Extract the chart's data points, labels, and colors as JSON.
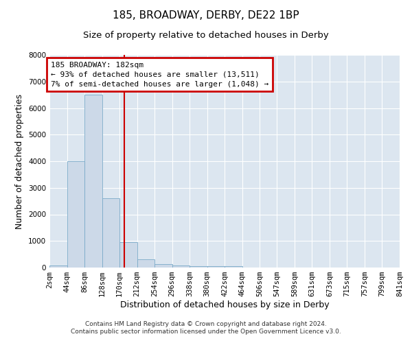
{
  "title": "185, BROADWAY, DERBY, DE22 1BP",
  "subtitle": "Size of property relative to detached houses in Derby",
  "xlabel": "Distribution of detached houses by size in Derby",
  "ylabel": "Number of detached properties",
  "footer_line1": "Contains HM Land Registry data © Crown copyright and database right 2024.",
  "footer_line2": "Contains public sector information licensed under the Open Government Licence v3.0.",
  "annotation_line1": "185 BROADWAY: 182sqm",
  "annotation_line2": "← 93% of detached houses are smaller (13,511)",
  "annotation_line3": "7% of semi-detached houses are larger (1,048) →",
  "property_size": 182,
  "bin_edges": [
    2,
    44,
    86,
    128,
    170,
    212,
    254,
    296,
    338,
    380,
    422,
    464,
    506,
    547,
    589,
    631,
    673,
    715,
    757,
    799,
    841
  ],
  "bar_heights": [
    80,
    4000,
    6500,
    2600,
    950,
    320,
    130,
    80,
    60,
    60,
    50,
    0,
    0,
    0,
    0,
    0,
    0,
    0,
    0,
    0
  ],
  "bar_color": "#ccd9e8",
  "bar_edge_color": "#7aaac8",
  "vline_color": "#cc0000",
  "vline_x": 182,
  "annotation_box_color": "#cc0000",
  "background_color": "#dce6f0",
  "ylim": [
    0,
    8000
  ],
  "yticks": [
    0,
    1000,
    2000,
    3000,
    4000,
    5000,
    6000,
    7000,
    8000
  ],
  "title_fontsize": 11,
  "subtitle_fontsize": 9.5,
  "axis_label_fontsize": 9,
  "tick_fontsize": 7.5,
  "footer_fontsize": 6.5,
  "annotation_fontsize": 8
}
